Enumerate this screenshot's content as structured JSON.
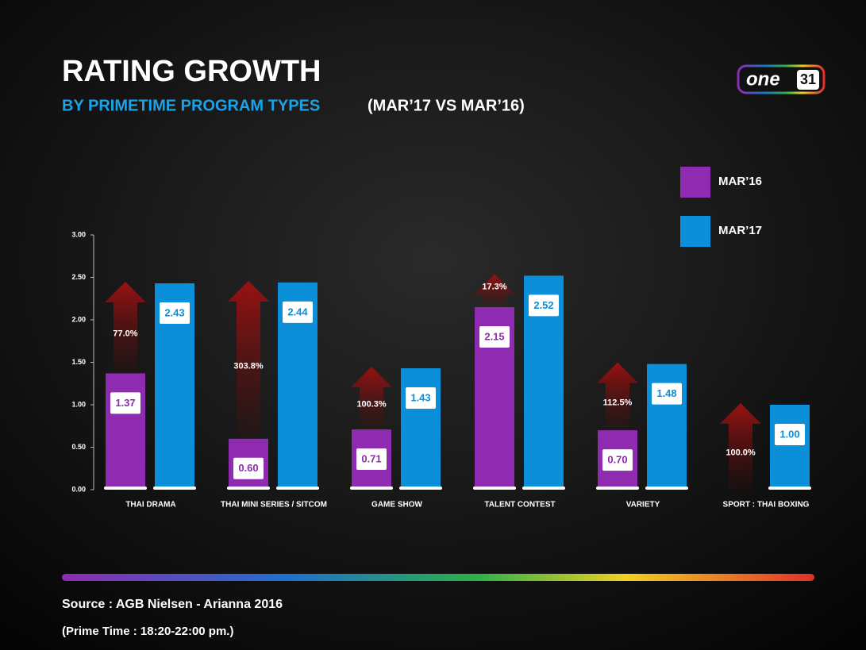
{
  "chart_data": {
    "type": "bar",
    "title": "RATING GROWTH",
    "subtitle": "BY PRIMETIME PROGRAM TYPES",
    "subtitle_note": "(MAR’17 VS MAR’16)",
    "logo": [
      "one",
      "31"
    ],
    "categories": [
      "THAI DRAMA",
      "THAI MINI SERIES / SITCOM",
      "GAME SHOW",
      "TALENT CONTEST",
      "VARIETY",
      "SPORT : THAI BOXING"
    ],
    "series": [
      {
        "name": "MAR’16",
        "color": "#8e2bb0",
        "values": [
          1.37,
          0.6,
          0.71,
          2.15,
          0.7,
          null
        ],
        "value_labels": [
          "1.37",
          "0.60",
          "0.71",
          "2.15",
          "0.70",
          null
        ]
      },
      {
        "name": "MAR’17",
        "color": "#0a8fd8",
        "values": [
          2.43,
          2.44,
          1.43,
          2.52,
          1.48,
          1.0
        ],
        "value_labels": [
          "2.43",
          "2.44",
          "1.43",
          "2.52",
          "1.48",
          "1.00"
        ]
      }
    ],
    "annotations": [
      "77.0%",
      "303.8%",
      "100.3%",
      "17.3%",
      "112.5%",
      "100.0%"
    ],
    "ylim": [
      0,
      3
    ],
    "yticks": [
      {
        "value": 0,
        "label": "0.00"
      },
      {
        "value": 0.5,
        "label": "0.50"
      },
      {
        "value": 1,
        "label": "1.00"
      },
      {
        "value": 1.5,
        "label": "1.50"
      },
      {
        "value": 2,
        "label": "2.00"
      },
      {
        "value": 2.5,
        "label": "2.50"
      },
      {
        "value": 3,
        "label": "3.00"
      }
    ],
    "legend": "upper right",
    "footnotes": [
      "Source : AGB Nielsen -  Arianna 2016",
      "(Prime Time : 18:20-22:00 pm.)"
    ]
  }
}
